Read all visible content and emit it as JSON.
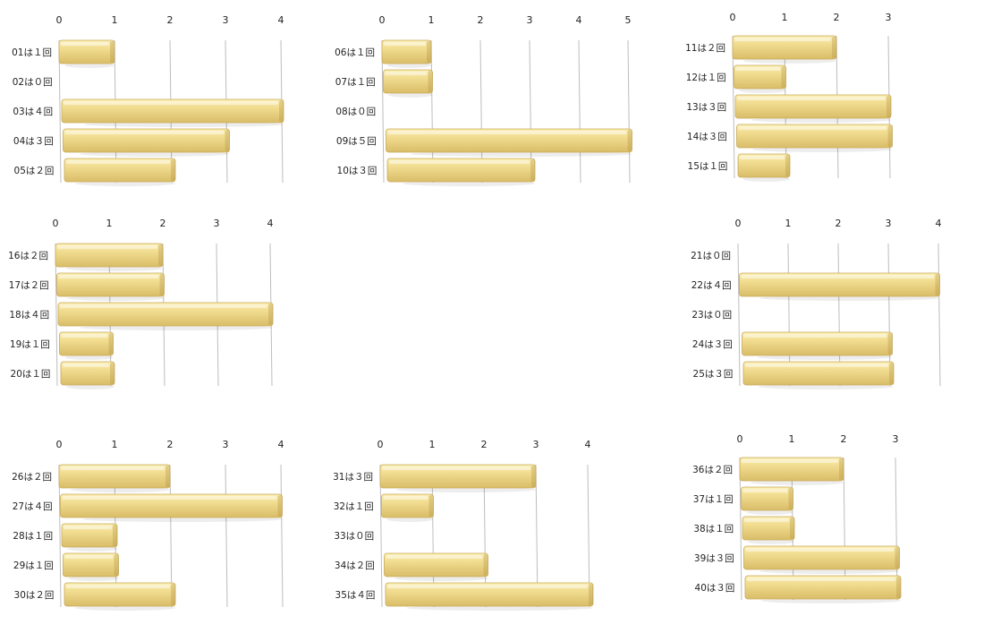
{
  "chart_data": [
    {
      "type": "bar",
      "categories": [
        "01は１回",
        "02は０回",
        "03は４回",
        "04は３回",
        "05は２回"
      ],
      "values": [
        1,
        0,
        4,
        3,
        2
      ],
      "xlim": [
        0,
        4
      ],
      "ticks": [
        0,
        1,
        2,
        3,
        4
      ],
      "grid": true
    },
    {
      "type": "bar",
      "categories": [
        "06は１回",
        "07は１回",
        "08は０回",
        "09は５回",
        "10は３回"
      ],
      "values": [
        1,
        1,
        0,
        5,
        3
      ],
      "xlim": [
        0,
        5
      ],
      "ticks": [
        0,
        1,
        2,
        3,
        4,
        5
      ],
      "grid": true
    },
    {
      "type": "bar",
      "categories": [
        "11は２回",
        "12は１回",
        "13は３回",
        "14は３回",
        "15は１回"
      ],
      "values": [
        2,
        1,
        3,
        3,
        1
      ],
      "xlim": [
        0,
        3
      ],
      "ticks": [
        0,
        1,
        2,
        3
      ],
      "grid": true
    },
    {
      "type": "bar",
      "categories": [
        "16は２回",
        "17は２回",
        "18は４回",
        "19は１回",
        "20は１回"
      ],
      "values": [
        2,
        2,
        4,
        1,
        1
      ],
      "xlim": [
        0,
        4
      ],
      "ticks": [
        0,
        1,
        2,
        3,
        4
      ],
      "grid": true
    },
    {
      "type": "bar",
      "categories": [
        "21は０回",
        "22は４回",
        "23は０回",
        "24は３回",
        "25は３回"
      ],
      "values": [
        0,
        4,
        0,
        3,
        3
      ],
      "xlim": [
        0,
        4
      ],
      "ticks": [
        0,
        1,
        2,
        3,
        4
      ],
      "grid": true
    },
    {
      "type": "bar",
      "categories": [
        "26は２回",
        "27は４回",
        "28は１回",
        "29は１回",
        "30は２回"
      ],
      "values": [
        2,
        4,
        1,
        1,
        2
      ],
      "xlim": [
        0,
        4
      ],
      "ticks": [
        0,
        1,
        2,
        3,
        4
      ],
      "grid": true
    },
    {
      "type": "bar",
      "categories": [
        "31は３回",
        "32は１回",
        "33は０回",
        "34は２回",
        "35は４回"
      ],
      "values": [
        3,
        1,
        0,
        2,
        4
      ],
      "xlim": [
        0,
        4
      ],
      "ticks": [
        0,
        1,
        2,
        3,
        4
      ],
      "grid": true
    },
    {
      "type": "bar",
      "categories": [
        "36は２回",
        "37は１回",
        "38は１回",
        "39は３回",
        "40は３回"
      ],
      "values": [
        2,
        1,
        1,
        3,
        3
      ],
      "xlim": [
        0,
        3
      ],
      "ticks": [
        0,
        1,
        2,
        3
      ],
      "grid": true
    }
  ],
  "colors": {
    "bar_top": "#fbf0b4",
    "bar_mid": "#f1dc90",
    "bar_bottom": "#d9bd68",
    "bar_edge": "#c9a95a",
    "grid": "#bdbdbd"
  }
}
